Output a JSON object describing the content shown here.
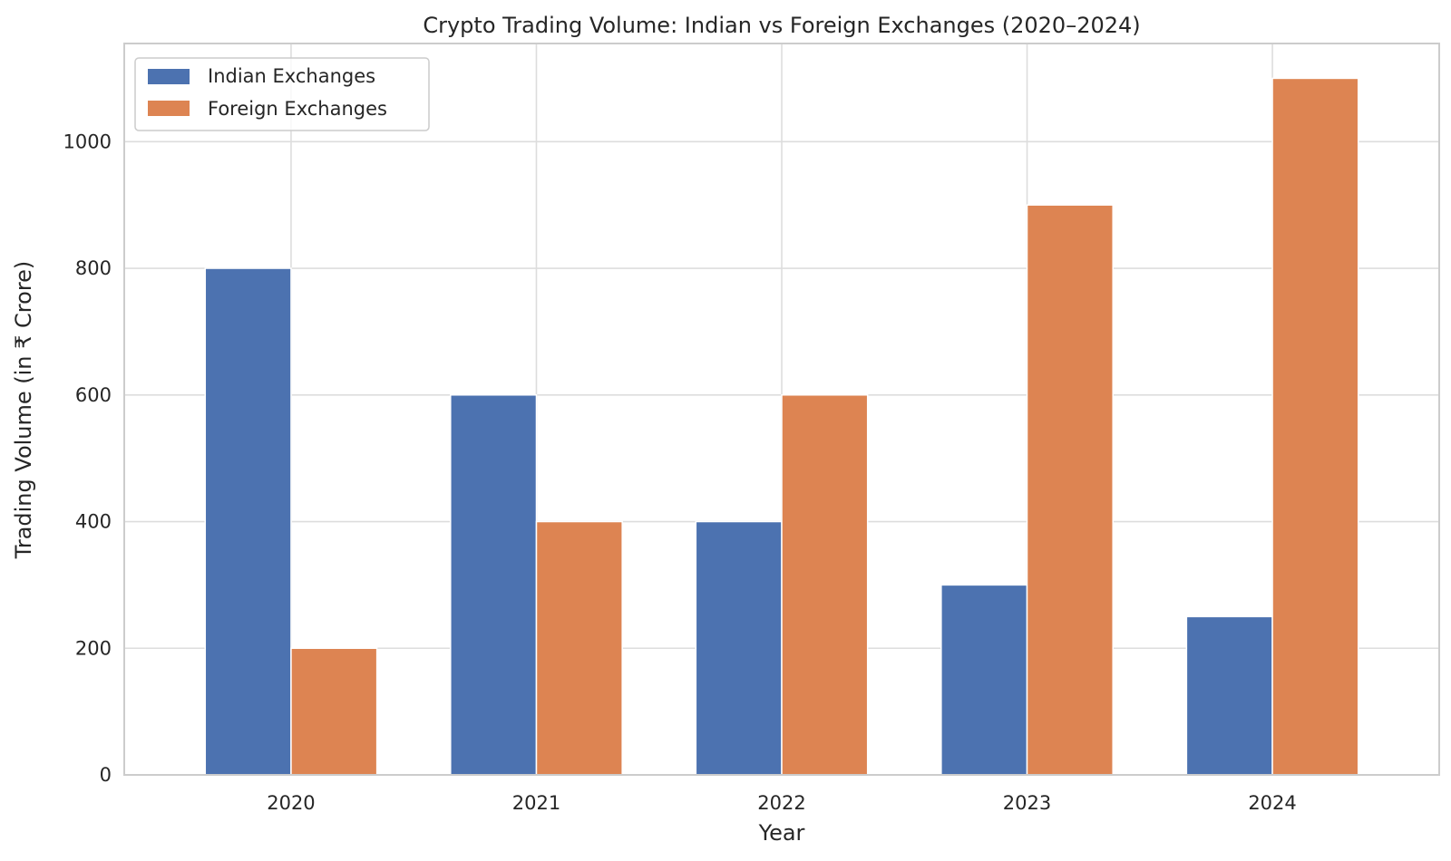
{
  "chart_data": {
    "type": "bar",
    "title": "Crypto Trading Volume: Indian vs Foreign Exchanges (2020–2024)",
    "xlabel": "Year",
    "ylabel": "Trading Volume (in ₹ Crore)",
    "categories": [
      "2020",
      "2021",
      "2022",
      "2023",
      "2024"
    ],
    "series": [
      {
        "name": "Indian Exchanges",
        "values": [
          800,
          600,
          400,
          300,
          250
        ],
        "color": "#4c72b0"
      },
      {
        "name": "Foreign Exchanges",
        "values": [
          200,
          400,
          600,
          900,
          1100
        ],
        "color": "#dd8452"
      }
    ],
    "ylim": [
      0,
      1155
    ],
    "yticks": [
      0,
      200,
      400,
      600,
      800,
      1000
    ],
    "grid": true,
    "legend_position": "top-left"
  }
}
